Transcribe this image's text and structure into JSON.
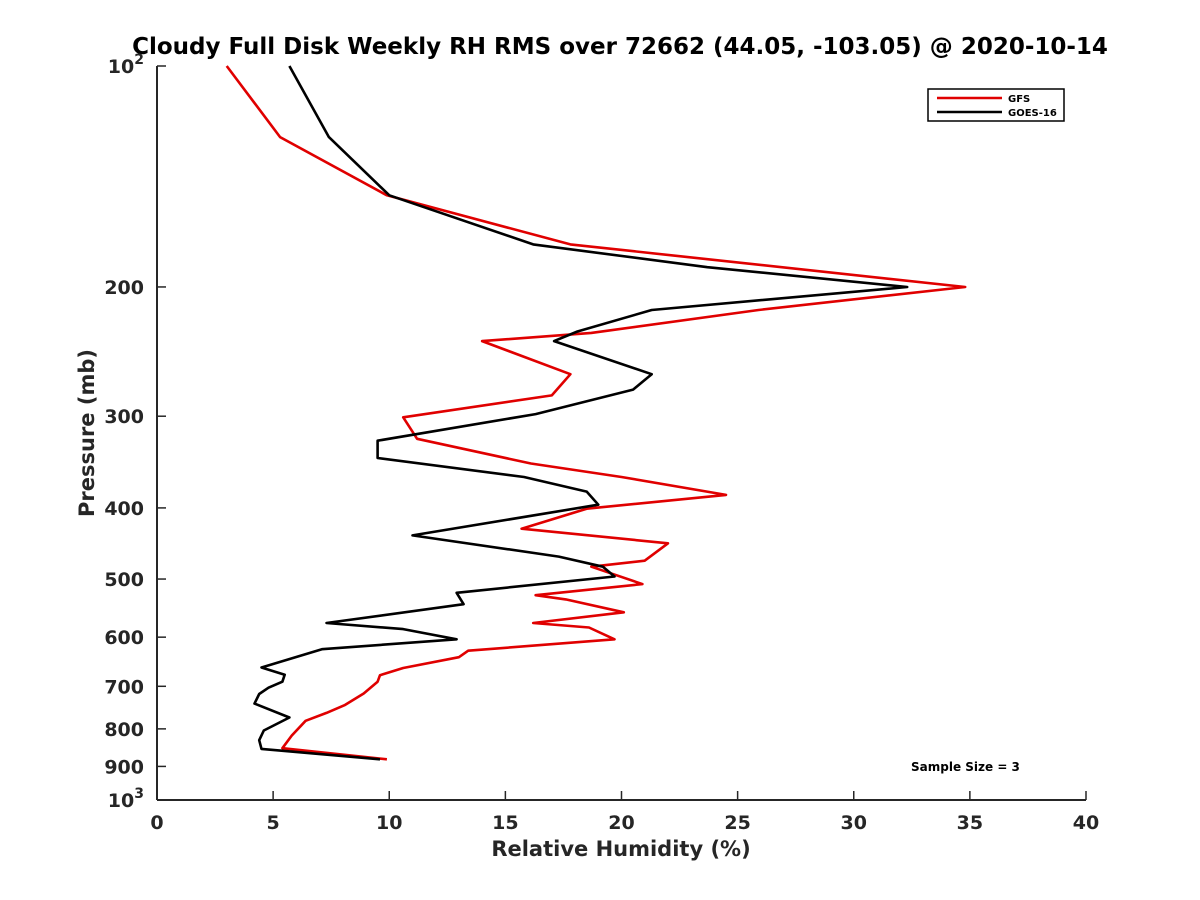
{
  "chart_data": {
    "type": "line",
    "title": "Cloudy Full Disk Weekly RH RMS over 72662 (44.05, -103.05) @ 2020-10-14",
    "xlabel": "Relative Humidity (%)",
    "ylabel": "Pressure (mb)",
    "xlim": [
      0,
      40
    ],
    "ylim": [
      100,
      1000
    ],
    "y_scale": "log",
    "y_reversed": true,
    "grid": false,
    "legend_position": "top-right",
    "x_ticks": [
      "0",
      "5",
      "10",
      "15",
      "20",
      "25",
      "30",
      "35",
      "40"
    ],
    "y_ticks": [
      {
        "p": 100,
        "base": "10",
        "exp": "2"
      },
      {
        "p": 200,
        "label": "200"
      },
      {
        "p": 300,
        "label": "300"
      },
      {
        "p": 400,
        "label": "400"
      },
      {
        "p": 500,
        "label": "500"
      },
      {
        "p": 600,
        "label": "600"
      },
      {
        "p": 700,
        "label": "700"
      },
      {
        "p": 800,
        "label": "800"
      },
      {
        "p": 900,
        "label": "900"
      },
      {
        "p": 1000,
        "base": "10",
        "exp": "3"
      }
    ],
    "series": [
      {
        "name": "GFS",
        "color": "#e00000",
        "points": [
          [
            3.0,
            100
          ],
          [
            5.3,
            125
          ],
          [
            9.9,
            150
          ],
          [
            17.8,
            175
          ],
          [
            34.8,
            200
          ],
          [
            25.9,
            215
          ],
          [
            18.7,
            231
          ],
          [
            14.0,
            237
          ],
          [
            17.8,
            263
          ],
          [
            17.0,
            281
          ],
          [
            10.6,
            301
          ],
          [
            11.2,
            322
          ],
          [
            16.1,
            348
          ],
          [
            20.0,
            363
          ],
          [
            24.5,
            384
          ],
          [
            18.5,
            401
          ],
          [
            15.7,
            427
          ],
          [
            22.0,
            447
          ],
          [
            21.0,
            472
          ],
          [
            18.7,
            481
          ],
          [
            20.9,
            508
          ],
          [
            16.3,
            526
          ],
          [
            17.6,
            533
          ],
          [
            20.1,
            555
          ],
          [
            16.2,
            574
          ],
          [
            18.6,
            582
          ],
          [
            19.7,
            604
          ],
          [
            13.4,
            626
          ],
          [
            13.0,
            639
          ],
          [
            10.6,
            661
          ],
          [
            9.6,
            676
          ],
          [
            9.5,
            690
          ],
          [
            8.9,
            716
          ],
          [
            8.1,
            742
          ],
          [
            7.3,
            761
          ],
          [
            6.4,
            780
          ],
          [
            5.8,
            817
          ],
          [
            5.4,
            850
          ],
          [
            9.9,
            880
          ]
        ]
      },
      {
        "name": "GOES-16",
        "color": "#000000",
        "points": [
          [
            5.7,
            100
          ],
          [
            7.4,
            125
          ],
          [
            10.0,
            150
          ],
          [
            16.2,
            175
          ],
          [
            23.7,
            188
          ],
          [
            32.3,
            200
          ],
          [
            21.3,
            215
          ],
          [
            18.1,
            230
          ],
          [
            17.1,
            237
          ],
          [
            21.3,
            263
          ],
          [
            20.5,
            276
          ],
          [
            16.3,
            298
          ],
          [
            9.5,
            324
          ],
          [
            9.5,
            342
          ],
          [
            15.8,
            363
          ],
          [
            18.5,
            380
          ],
          [
            19.0,
            396
          ],
          [
            11.0,
            436
          ],
          [
            17.3,
            466
          ],
          [
            19.2,
            481
          ],
          [
            19.7,
            496
          ],
          [
            12.9,
            522
          ],
          [
            13.2,
            541
          ],
          [
            7.3,
            574
          ],
          [
            10.6,
            585
          ],
          [
            12.9,
            604
          ],
          [
            7.1,
            623
          ],
          [
            4.5,
            660
          ],
          [
            5.5,
            675
          ],
          [
            5.4,
            690
          ],
          [
            4.8,
            703
          ],
          [
            4.4,
            717
          ],
          [
            4.2,
            739
          ],
          [
            5.7,
            772
          ],
          [
            4.6,
            804
          ],
          [
            4.4,
            829
          ],
          [
            4.5,
            852
          ],
          [
            9.6,
            880
          ]
        ]
      }
    ],
    "annotation": "Sample Size = 3"
  }
}
